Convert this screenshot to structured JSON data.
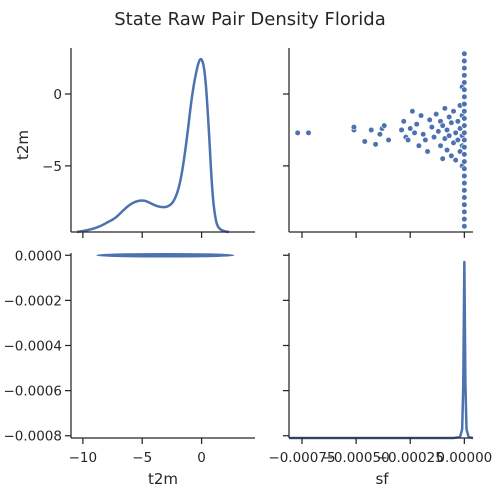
{
  "chart_data": {
    "type": "pairplot",
    "title": "State Raw Pair Density Florida",
    "variables": [
      "t2m",
      "sf"
    ],
    "style": {
      "color": "#4c72b0",
      "grid": false,
      "legend": "none"
    },
    "panels": [
      {
        "id": "t2m-diag",
        "type": "kde",
        "x_variable": "t2m",
        "ylabel": "t2m",
        "xlim": [
          -11,
          4.5
        ],
        "y_ticks": [
          0,
          -5
        ],
        "y_tick_labels": [
          "0",
          "−5"
        ],
        "x": [
          -10.5,
          -9.5,
          -8.5,
          -7.8,
          -7.3,
          -6.8,
          -6.3,
          -5.8,
          -5.3,
          -4.8,
          -4.3,
          -3.8,
          -3.3,
          -2.8,
          -2.3,
          -1.8,
          -1.3,
          -0.8,
          -0.3,
          0.0,
          0.3,
          0.6,
          0.9,
          1.2,
          1.5,
          1.9,
          2.3
        ],
        "density": [
          0.0,
          0.01,
          0.03,
          0.055,
          0.07,
          0.1,
          0.13,
          0.152,
          0.163,
          0.165,
          0.15,
          0.135,
          0.128,
          0.132,
          0.16,
          0.25,
          0.45,
          0.72,
          0.88,
          0.91,
          0.83,
          0.55,
          0.2,
          0.05,
          0.015,
          0.004,
          0.0
        ]
      },
      {
        "id": "sf-vs-t2m-scatter",
        "type": "scatter",
        "x_variable": "sf",
        "y_variable": "t2m",
        "xlim": [
          -0.00081,
          4e-05
        ],
        "ylim": [
          -9.6,
          3.2
        ],
        "points": [
          {
            "x": -0.00077,
            "y": -2.7
          },
          {
            "x": -0.00072,
            "y": -2.7
          },
          {
            "x": -0.00051,
            "y": -2.5
          },
          {
            "x": -0.00051,
            "y": -2.3
          },
          {
            "x": -0.00046,
            "y": -3.3
          },
          {
            "x": -0.00043,
            "y": -2.5
          },
          {
            "x": -0.00041,
            "y": -3.5
          },
          {
            "x": -0.00039,
            "y": -2.8
          },
          {
            "x": -0.00038,
            "y": -2.4
          },
          {
            "x": -0.00037,
            "y": -2.2
          },
          {
            "x": -0.00035,
            "y": -3.2
          },
          {
            "x": -0.00029,
            "y": -2.5
          },
          {
            "x": -0.00028,
            "y": -1.9
          },
          {
            "x": -0.00027,
            "y": -3.0
          },
          {
            "x": -0.00026,
            "y": -3.2
          },
          {
            "x": -0.00025,
            "y": -2.4
          },
          {
            "x": -0.00024,
            "y": -1.2
          },
          {
            "x": -0.00023,
            "y": -2.7
          },
          {
            "x": -0.00022,
            "y": -2.1
          },
          {
            "x": -0.00021,
            "y": -3.6
          },
          {
            "x": -0.0002,
            "y": -1.5
          },
          {
            "x": -0.00019,
            "y": -2.8
          },
          {
            "x": -0.00018,
            "y": -3.2
          },
          {
            "x": -0.00017,
            "y": -4.0
          },
          {
            "x": -0.00016,
            "y": -1.8
          },
          {
            "x": -0.00015,
            "y": -2.3
          },
          {
            "x": -0.00014,
            "y": -3.0
          },
          {
            "x": -0.00013,
            "y": -1.4
          },
          {
            "x": -0.00012,
            "y": -2.6
          },
          {
            "x": -0.00011,
            "y": -3.6
          },
          {
            "x": -0.00011,
            "y": -1.9
          },
          {
            "x": -0.0001,
            "y": -4.5
          },
          {
            "x": -0.0001,
            "y": -2.2
          },
          {
            "x": -9e-05,
            "y": -1.0
          },
          {
            "x": -9e-05,
            "y": -3.1
          },
          {
            "x": -8e-05,
            "y": -2.5
          },
          {
            "x": -8e-05,
            "y": -3.9
          },
          {
            "x": -7e-05,
            "y": -1.6
          },
          {
            "x": -7e-05,
            "y": -2.9
          },
          {
            "x": -6e-05,
            "y": -4.3
          },
          {
            "x": -6e-05,
            "y": -2.0
          },
          {
            "x": -5e-05,
            "y": -3.4
          },
          {
            "x": -5e-05,
            "y": -1.2
          },
          {
            "x": -4e-05,
            "y": -2.7
          },
          {
            "x": -4e-05,
            "y": -4.6
          },
          {
            "x": -3e-05,
            "y": -1.9
          },
          {
            "x": -3e-05,
            "y": -3.2
          },
          {
            "x": -2e-05,
            "y": -2.4
          },
          {
            "x": -2e-05,
            "y": -0.8
          },
          {
            "x": -2e-05,
            "y": -4.0
          },
          {
            "x": -1e-05,
            "y": -2.9
          },
          {
            "x": -1e-05,
            "y": -1.5
          },
          {
            "x": -1e-05,
            "y": -3.6
          },
          {
            "x": -1e-05,
            "y": 0.5
          },
          {
            "x": -1e-05,
            "y": -5.0
          },
          {
            "x": 0.0,
            "y": 2.8
          },
          {
            "x": 0.0,
            "y": 2.3
          },
          {
            "x": 0.0,
            "y": 1.8
          },
          {
            "x": 0.0,
            "y": 1.3
          },
          {
            "x": 0.0,
            "y": 0.8
          },
          {
            "x": 0.0,
            "y": 0.3
          },
          {
            "x": 0.0,
            "y": -0.2
          },
          {
            "x": 0.0,
            "y": -0.7
          },
          {
            "x": 0.0,
            "y": -1.2
          },
          {
            "x": 0.0,
            "y": -1.7
          },
          {
            "x": 0.0,
            "y": -2.2
          },
          {
            "x": 0.0,
            "y": -2.7
          },
          {
            "x": 0.0,
            "y": -3.2
          },
          {
            "x": 0.0,
            "y": -3.7
          },
          {
            "x": 0.0,
            "y": -4.2
          },
          {
            "x": 0.0,
            "y": -4.7
          },
          {
            "x": 0.0,
            "y": -5.2
          },
          {
            "x": 0.0,
            "y": -5.7
          },
          {
            "x": 0.0,
            "y": -6.2
          },
          {
            "x": 0.0,
            "y": -6.7
          },
          {
            "x": 0.0,
            "y": -7.2
          },
          {
            "x": 0.0,
            "y": -7.7
          },
          {
            "x": 0.0,
            "y": -8.2
          },
          {
            "x": 0.0,
            "y": -8.7
          },
          {
            "x": 0.0,
            "y": -9.2
          }
        ]
      },
      {
        "id": "t2m-vs-sf-kde",
        "type": "kde2d",
        "x_variable": "t2m",
        "y_variable": "sf",
        "xlabel": "t2m",
        "xlim": [
          -11,
          4.5
        ],
        "ylim": [
          -0.00081,
          1e-05
        ],
        "x_ticks": [
          -10,
          -5,
          0
        ],
        "x_tick_labels": [
          "−10",
          "−5",
          "0"
        ],
        "y_ticks": [
          0.0,
          -0.0002,
          -0.0004,
          -0.0006,
          -0.0008
        ],
        "y_tick_labels": [
          "0.0000",
          "−0.0002",
          "−0.0004",
          "−0.0006",
          "−0.0008"
        ],
        "contours": [
          {
            "x_range": [
              -8.8,
              2.7
            ],
            "y_center": 0.0,
            "y_half_height": 6.5e-06
          },
          {
            "x_range": [
              -8.2,
              2.2
            ],
            "y_center": 0.0,
            "y_half_height": 5e-06
          },
          {
            "x_range": [
              -7.2,
              1.6
            ],
            "y_center": 0.0,
            "y_half_height": 3.5e-06
          },
          {
            "x_range": [
              -5.8,
              1.0
            ],
            "y_center": 0.0,
            "y_half_height": 2e-06
          }
        ]
      },
      {
        "id": "sf-diag",
        "type": "kde",
        "x_variable": "sf",
        "xlabel": "sf",
        "xlim": [
          -0.00081,
          4e-05
        ],
        "x_ticks": [
          -0.00075,
          -0.0005,
          -0.00025,
          0.0
        ],
        "x_tick_labels": [
          "−0.00075",
          "−0.00050",
          "−0.00025",
          "0.00000"
        ],
        "x": [
          -0.00081,
          -5e-05,
          -2e-05,
          -1e-05,
          -5e-06,
          0.0,
          5e-06,
          1e-05,
          2e-05,
          4e-05
        ],
        "density": [
          0.0,
          0.0,
          0.005,
          0.05,
          0.3,
          1.0,
          0.3,
          0.05,
          0.005,
          0.0
        ]
      }
    ]
  }
}
